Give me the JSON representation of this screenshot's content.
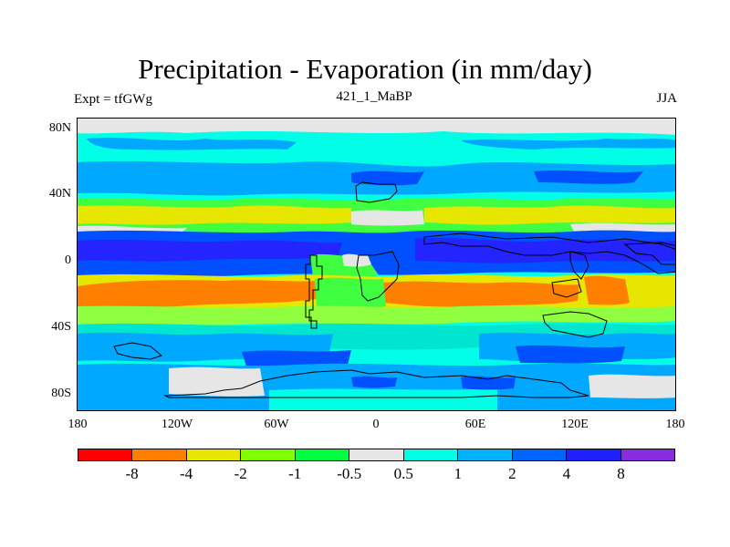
{
  "title": "Precipitation - Evaporation (in mm/day)",
  "left_label": "Expt = tfGWg",
  "center_label": "421_1_MaBP",
  "right_label": "JJA",
  "lat_ticks": [
    "80N",
    "40N",
    "0",
    "40S",
    "80S"
  ],
  "lon_ticks": [
    "180",
    "120W",
    "60W",
    "0",
    "60E",
    "120E",
    "180"
  ],
  "colorbar": {
    "colors": [
      "#ff0000",
      "#ff8000",
      "#e6e600",
      "#80ff00",
      "#00ff40",
      "#e6e6e6",
      "#00ffe6",
      "#00b2ff",
      "#0064ff",
      "#2020ff",
      "#8a2be2"
    ],
    "labels": [
      "-8",
      "-4",
      "-2",
      "-1",
      "-0.5",
      "0.5",
      "1",
      "2",
      "4",
      "8"
    ]
  },
  "colors": {
    "cyan": "#00ffe6",
    "teal": "#00e5d0",
    "skyblue": "#00a8ff",
    "blue": "#0050ff",
    "darkblue": "#2424ff",
    "grey": "#e6e6e6",
    "green": "#40ff40",
    "lightgreen": "#90ff40",
    "yellow": "#e6e600",
    "orange": "#ff8000",
    "coast": "#000000"
  }
}
